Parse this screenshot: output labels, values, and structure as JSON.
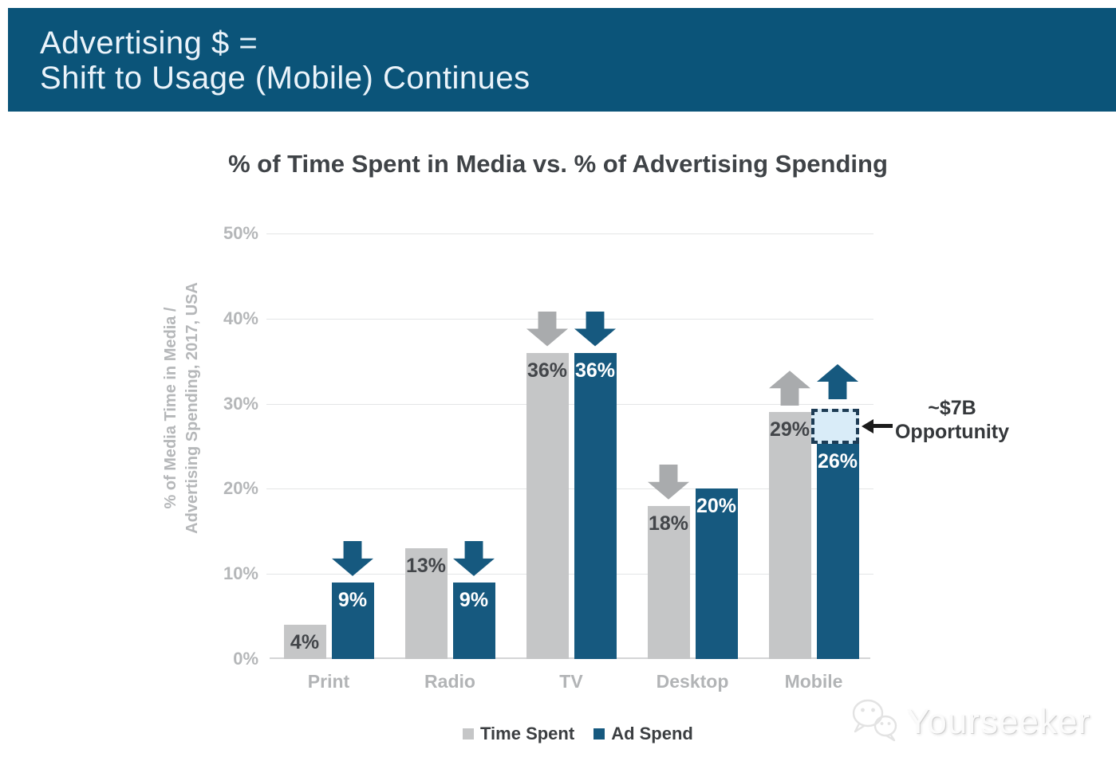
{
  "header": {
    "line1": "Advertising $ =",
    "line2": "Shift to Usage (Mobile) Continues"
  },
  "chart_title": "% of Time Spent in Media vs. % of Advertising Spending",
  "y_axis": {
    "label_line1": "% of Media Time in Media /",
    "label_line2": "Advertising Spending, 2017, USA",
    "ticks": [
      "50%",
      "40%",
      "30%",
      "20%",
      "10%",
      "0%"
    ]
  },
  "chart_data": {
    "type": "bar",
    "title": "% of Time Spent in Media vs. % of Advertising Spending",
    "ylabel": "% of Media Time in Media / Advertising Spending, 2017, USA",
    "categories": [
      "Print",
      "Radio",
      "TV",
      "Desktop",
      "Mobile"
    ],
    "series": [
      {
        "name": "Time Spent",
        "color": "#c5c6c7",
        "values": [
          4,
          13,
          36,
          18,
          29
        ],
        "value_labels": [
          "4%",
          "13%",
          "36%",
          "18%",
          "29%"
        ],
        "trend_indicators": [
          "equal",
          "equal",
          "down",
          "down",
          "up"
        ],
        "label_color": "#43464a"
      },
      {
        "name": "Ad Spend",
        "color": "#16597f",
        "values": [
          9,
          9,
          36,
          20,
          26
        ],
        "value_labels": [
          "9%",
          "9%",
          "36%",
          "20%",
          "26%"
        ],
        "trend_indicators": [
          "down",
          "down",
          "down",
          "equal",
          "up"
        ],
        "label_color": "#ffffff"
      }
    ],
    "ylim": [
      0,
      50
    ],
    "ytick_step": 10,
    "grid": true,
    "legend_position": "bottom"
  },
  "annotation": {
    "line1": "~$7B",
    "line2": "Opportunity",
    "target_category": "Mobile",
    "target_series": "Ad Spend",
    "box_top_pct": 29.4,
    "box_bottom_pct": 25.3,
    "box_fill": "#d9ecf8",
    "box_border": "#1d3c55"
  },
  "legend": [
    {
      "label": "Time Spent",
      "color": "#c5c6c7"
    },
    {
      "label": "Ad Spend",
      "color": "#16597f"
    }
  ],
  "watermark": {
    "text": "Yourseeker",
    "icon": "wechat-icon"
  },
  "colors": {
    "banner_bg": "#0b5479",
    "banner_text": "#eaf3fa",
    "title_text": "#3f4347",
    "indicator_gray": "#a9abad",
    "indicator_blue": "#16597f",
    "gridline": "#e4e5e6",
    "axis_text": "#b5b7b9",
    "category_text": "#b2b4b6",
    "annotation_arrow": "#1b1b1b",
    "annotation_text": "#35383b"
  }
}
